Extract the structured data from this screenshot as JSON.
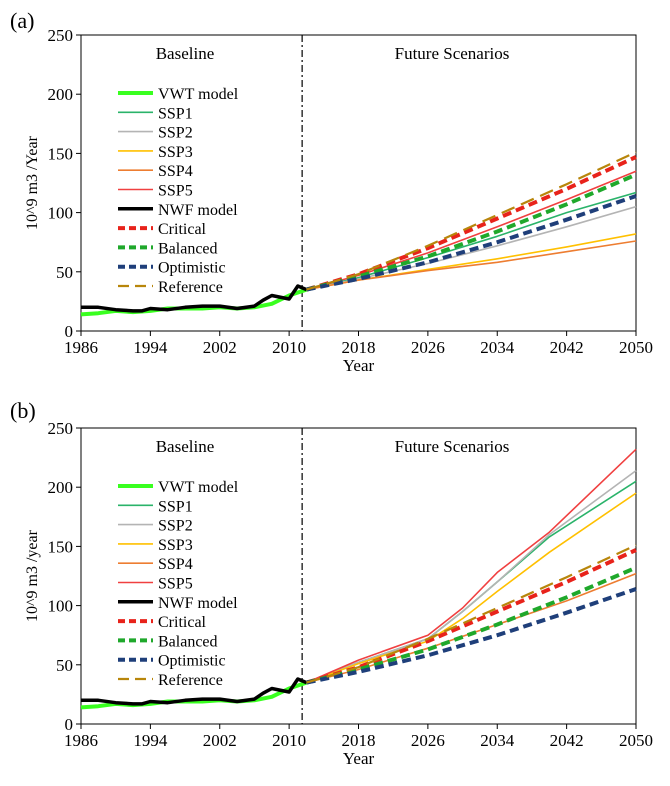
{
  "chart_data": [
    {
      "type": "line",
      "panel_label": "(a)",
      "xlabel": "Year",
      "ylabel": "10^9 m3 /Year",
      "xlim": [
        1986,
        2050
      ],
      "ylim": [
        0,
        250
      ],
      "xticks": [
        1986,
        1994,
        2002,
        2010,
        2018,
        2026,
        2034,
        2042,
        2050
      ],
      "yticks": [
        0,
        50,
        100,
        150,
        200,
        250
      ],
      "divider_year": 2011.5,
      "region_labels": {
        "left": "Baseline",
        "right": "Future Scenarios"
      },
      "legend_position": "upper-left",
      "series": [
        {
          "name": "VWT model",
          "color": "#39ff1f",
          "dash": "solid",
          "width": 4,
          "points": [
            [
              1986,
              14
            ],
            [
              1988,
              15
            ],
            [
              1990,
              17
            ],
            [
              1992,
              16
            ],
            [
              1994,
              17
            ],
            [
              1996,
              19
            ],
            [
              1998,
              19
            ],
            [
              2000,
              19
            ],
            [
              2002,
              20
            ],
            [
              2004,
              19
            ],
            [
              2006,
              20
            ],
            [
              2008,
              23
            ],
            [
              2010,
              30
            ],
            [
              2012,
              35
            ]
          ]
        },
        {
          "name": "SSP1",
          "color": "#2ab36a",
          "dash": "solid",
          "width": 1.6,
          "points": [
            [
              2012,
              35
            ],
            [
              2018,
              45
            ],
            [
              2026,
              62
            ],
            [
              2034,
              80
            ],
            [
              2042,
              100
            ],
            [
              2050,
              117
            ]
          ]
        },
        {
          "name": "SSP2",
          "color": "#b4b4b4",
          "dash": "solid",
          "width": 1.6,
          "points": [
            [
              2012,
              35
            ],
            [
              2018,
              44
            ],
            [
              2026,
              57
            ],
            [
              2034,
              72
            ],
            [
              2042,
              88
            ],
            [
              2050,
              105
            ]
          ]
        },
        {
          "name": "SSP3",
          "color": "#ffc000",
          "dash": "solid",
          "width": 1.6,
          "points": [
            [
              2012,
              35
            ],
            [
              2018,
              43
            ],
            [
              2026,
              52
            ],
            [
              2034,
              61
            ],
            [
              2042,
              71
            ],
            [
              2050,
              82
            ]
          ]
        },
        {
          "name": "SSP4",
          "color": "#ed7d31",
          "dash": "solid",
          "width": 1.6,
          "points": [
            [
              2012,
              35
            ],
            [
              2018,
              43
            ],
            [
              2026,
              51
            ],
            [
              2034,
              58
            ],
            [
              2042,
              67
            ],
            [
              2050,
              76
            ]
          ]
        },
        {
          "name": "SSP5",
          "color": "#f04040",
          "dash": "solid",
          "width": 1.6,
          "points": [
            [
              2012,
              35
            ],
            [
              2018,
              47
            ],
            [
              2026,
              66
            ],
            [
              2034,
              88
            ],
            [
              2042,
              111
            ],
            [
              2050,
              135
            ]
          ]
        },
        {
          "name": "NWF model",
          "color": "#000000",
          "dash": "solid",
          "width": 3.5,
          "points": [
            [
              1986,
              20
            ],
            [
              1988,
              20
            ],
            [
              1990,
              18
            ],
            [
              1992,
              17
            ],
            [
              1993,
              17
            ],
            [
              1994,
              19
            ],
            [
              1996,
              18
            ],
            [
              1998,
              20
            ],
            [
              2000,
              21
            ],
            [
              2002,
              21
            ],
            [
              2004,
              19
            ],
            [
              2006,
              21
            ],
            [
              2007,
              26
            ],
            [
              2008,
              30
            ],
            [
              2010,
              27
            ],
            [
              2011,
              38
            ],
            [
              2012,
              35
            ]
          ]
        },
        {
          "name": "Critical",
          "color": "#e8231b",
          "dash": "dash",
          "width": 4,
          "points": [
            [
              2012,
              35
            ],
            [
              2018,
              48
            ],
            [
              2026,
              70
            ],
            [
              2034,
              95
            ],
            [
              2042,
              120
            ],
            [
              2050,
              147
            ]
          ]
        },
        {
          "name": "Balanced",
          "color": "#1fa82b",
          "dash": "dash",
          "width": 4,
          "points": [
            [
              2012,
              35
            ],
            [
              2018,
              46
            ],
            [
              2026,
              63
            ],
            [
              2034,
              84
            ],
            [
              2042,
              107
            ],
            [
              2050,
              132
            ]
          ]
        },
        {
          "name": "Optimistic",
          "color": "#1f3f7a",
          "dash": "dash",
          "width": 4,
          "points": [
            [
              2012,
              35
            ],
            [
              2018,
              44
            ],
            [
              2026,
              58
            ],
            [
              2034,
              75
            ],
            [
              2042,
              94
            ],
            [
              2050,
              114
            ]
          ]
        },
        {
          "name": "Reference",
          "color": "#b8860b",
          "dash": "longdash",
          "width": 2.2,
          "points": [
            [
              2012,
              35
            ],
            [
              2018,
              48
            ],
            [
              2026,
              72
            ],
            [
              2034,
              98
            ],
            [
              2042,
              124
            ],
            [
              2050,
              151
            ]
          ]
        }
      ]
    },
    {
      "type": "line",
      "panel_label": "(b)",
      "xlabel": "Year",
      "ylabel": "10^9 m3 /year",
      "xlim": [
        1986,
        2050
      ],
      "ylim": [
        0,
        250
      ],
      "xticks": [
        1986,
        1994,
        2002,
        2010,
        2018,
        2026,
        2034,
        2042,
        2050
      ],
      "yticks": [
        0,
        50,
        100,
        150,
        200,
        250
      ],
      "divider_year": 2011.5,
      "region_labels": {
        "left": "Baseline",
        "right": "Future Scenarios"
      },
      "legend_position": "upper-left",
      "series": [
        {
          "name": "VWT model",
          "color": "#39ff1f",
          "dash": "solid",
          "width": 4,
          "points": [
            [
              1986,
              14
            ],
            [
              1988,
              15
            ],
            [
              1990,
              17
            ],
            [
              1992,
              16
            ],
            [
              1994,
              17
            ],
            [
              1996,
              19
            ],
            [
              1998,
              19
            ],
            [
              2000,
              19
            ],
            [
              2002,
              20
            ],
            [
              2004,
              19
            ],
            [
              2006,
              20
            ],
            [
              2008,
              23
            ],
            [
              2010,
              30
            ],
            [
              2012,
              35
            ]
          ]
        },
        {
          "name": "SSP1",
          "color": "#2ab36a",
          "dash": "solid",
          "width": 1.6,
          "points": [
            [
              2012,
              35
            ],
            [
              2018,
              52
            ],
            [
              2026,
              72
            ],
            [
              2030,
              95
            ],
            [
              2034,
              120
            ],
            [
              2040,
              158
            ],
            [
              2050,
              205
            ]
          ]
        },
        {
          "name": "SSP2",
          "color": "#b4b4b4",
          "dash": "solid",
          "width": 1.6,
          "points": [
            [
              2012,
              35
            ],
            [
              2018,
              52
            ],
            [
              2026,
              72
            ],
            [
              2030,
              95
            ],
            [
              2034,
              120
            ],
            [
              2040,
              160
            ],
            [
              2050,
              214
            ]
          ]
        },
        {
          "name": "SSP3",
          "color": "#ffc000",
          "dash": "solid",
          "width": 1.6,
          "points": [
            [
              2012,
              35
            ],
            [
              2018,
              51
            ],
            [
              2026,
              70
            ],
            [
              2030,
              89
            ],
            [
              2034,
              112
            ],
            [
              2040,
              145
            ],
            [
              2050,
              195
            ]
          ]
        },
        {
          "name": "SSP4",
          "color": "#ed7d31",
          "dash": "solid",
          "width": 1.6,
          "points": [
            [
              2012,
              35
            ],
            [
              2018,
              46
            ],
            [
              2026,
              64
            ],
            [
              2034,
              84
            ],
            [
              2042,
              104
            ],
            [
              2050,
              127
            ]
          ]
        },
        {
          "name": "SSP5",
          "color": "#f04040",
          "dash": "solid",
          "width": 1.6,
          "points": [
            [
              2012,
              35
            ],
            [
              2018,
              54
            ],
            [
              2026,
              75
            ],
            [
              2030,
              98
            ],
            [
              2034,
              128
            ],
            [
              2040,
              162
            ],
            [
              2050,
              232
            ]
          ]
        },
        {
          "name": "NWF model",
          "color": "#000000",
          "dash": "solid",
          "width": 3.5,
          "points": [
            [
              1986,
              20
            ],
            [
              1988,
              20
            ],
            [
              1990,
              18
            ],
            [
              1992,
              17
            ],
            [
              1993,
              17
            ],
            [
              1994,
              19
            ],
            [
              1996,
              18
            ],
            [
              1998,
              20
            ],
            [
              2000,
              21
            ],
            [
              2002,
              21
            ],
            [
              2004,
              19
            ],
            [
              2006,
              21
            ],
            [
              2007,
              26
            ],
            [
              2008,
              30
            ],
            [
              2010,
              27
            ],
            [
              2011,
              38
            ],
            [
              2012,
              35
            ]
          ]
        },
        {
          "name": "Critical",
          "color": "#e8231b",
          "dash": "dash",
          "width": 4,
          "points": [
            [
              2012,
              35
            ],
            [
              2018,
              48
            ],
            [
              2026,
              70
            ],
            [
              2034,
              95
            ],
            [
              2042,
              120
            ],
            [
              2050,
              147
            ]
          ]
        },
        {
          "name": "Balanced",
          "color": "#1fa82b",
          "dash": "dash",
          "width": 4,
          "points": [
            [
              2012,
              35
            ],
            [
              2018,
              46
            ],
            [
              2026,
              63
            ],
            [
              2034,
              84
            ],
            [
              2042,
              107
            ],
            [
              2050,
              132
            ]
          ]
        },
        {
          "name": "Optimistic",
          "color": "#1f3f7a",
          "dash": "dash",
          "width": 4,
          "points": [
            [
              2012,
              35
            ],
            [
              2018,
              44
            ],
            [
              2026,
              58
            ],
            [
              2034,
              75
            ],
            [
              2042,
              94
            ],
            [
              2050,
              114
            ]
          ]
        },
        {
          "name": "Reference",
          "color": "#b8860b",
          "dash": "longdash",
          "width": 2.2,
          "points": [
            [
              2012,
              35
            ],
            [
              2018,
              48
            ],
            [
              2026,
              72
            ],
            [
              2034,
              98
            ],
            [
              2042,
              124
            ],
            [
              2050,
              151
            ]
          ]
        }
      ]
    }
  ]
}
